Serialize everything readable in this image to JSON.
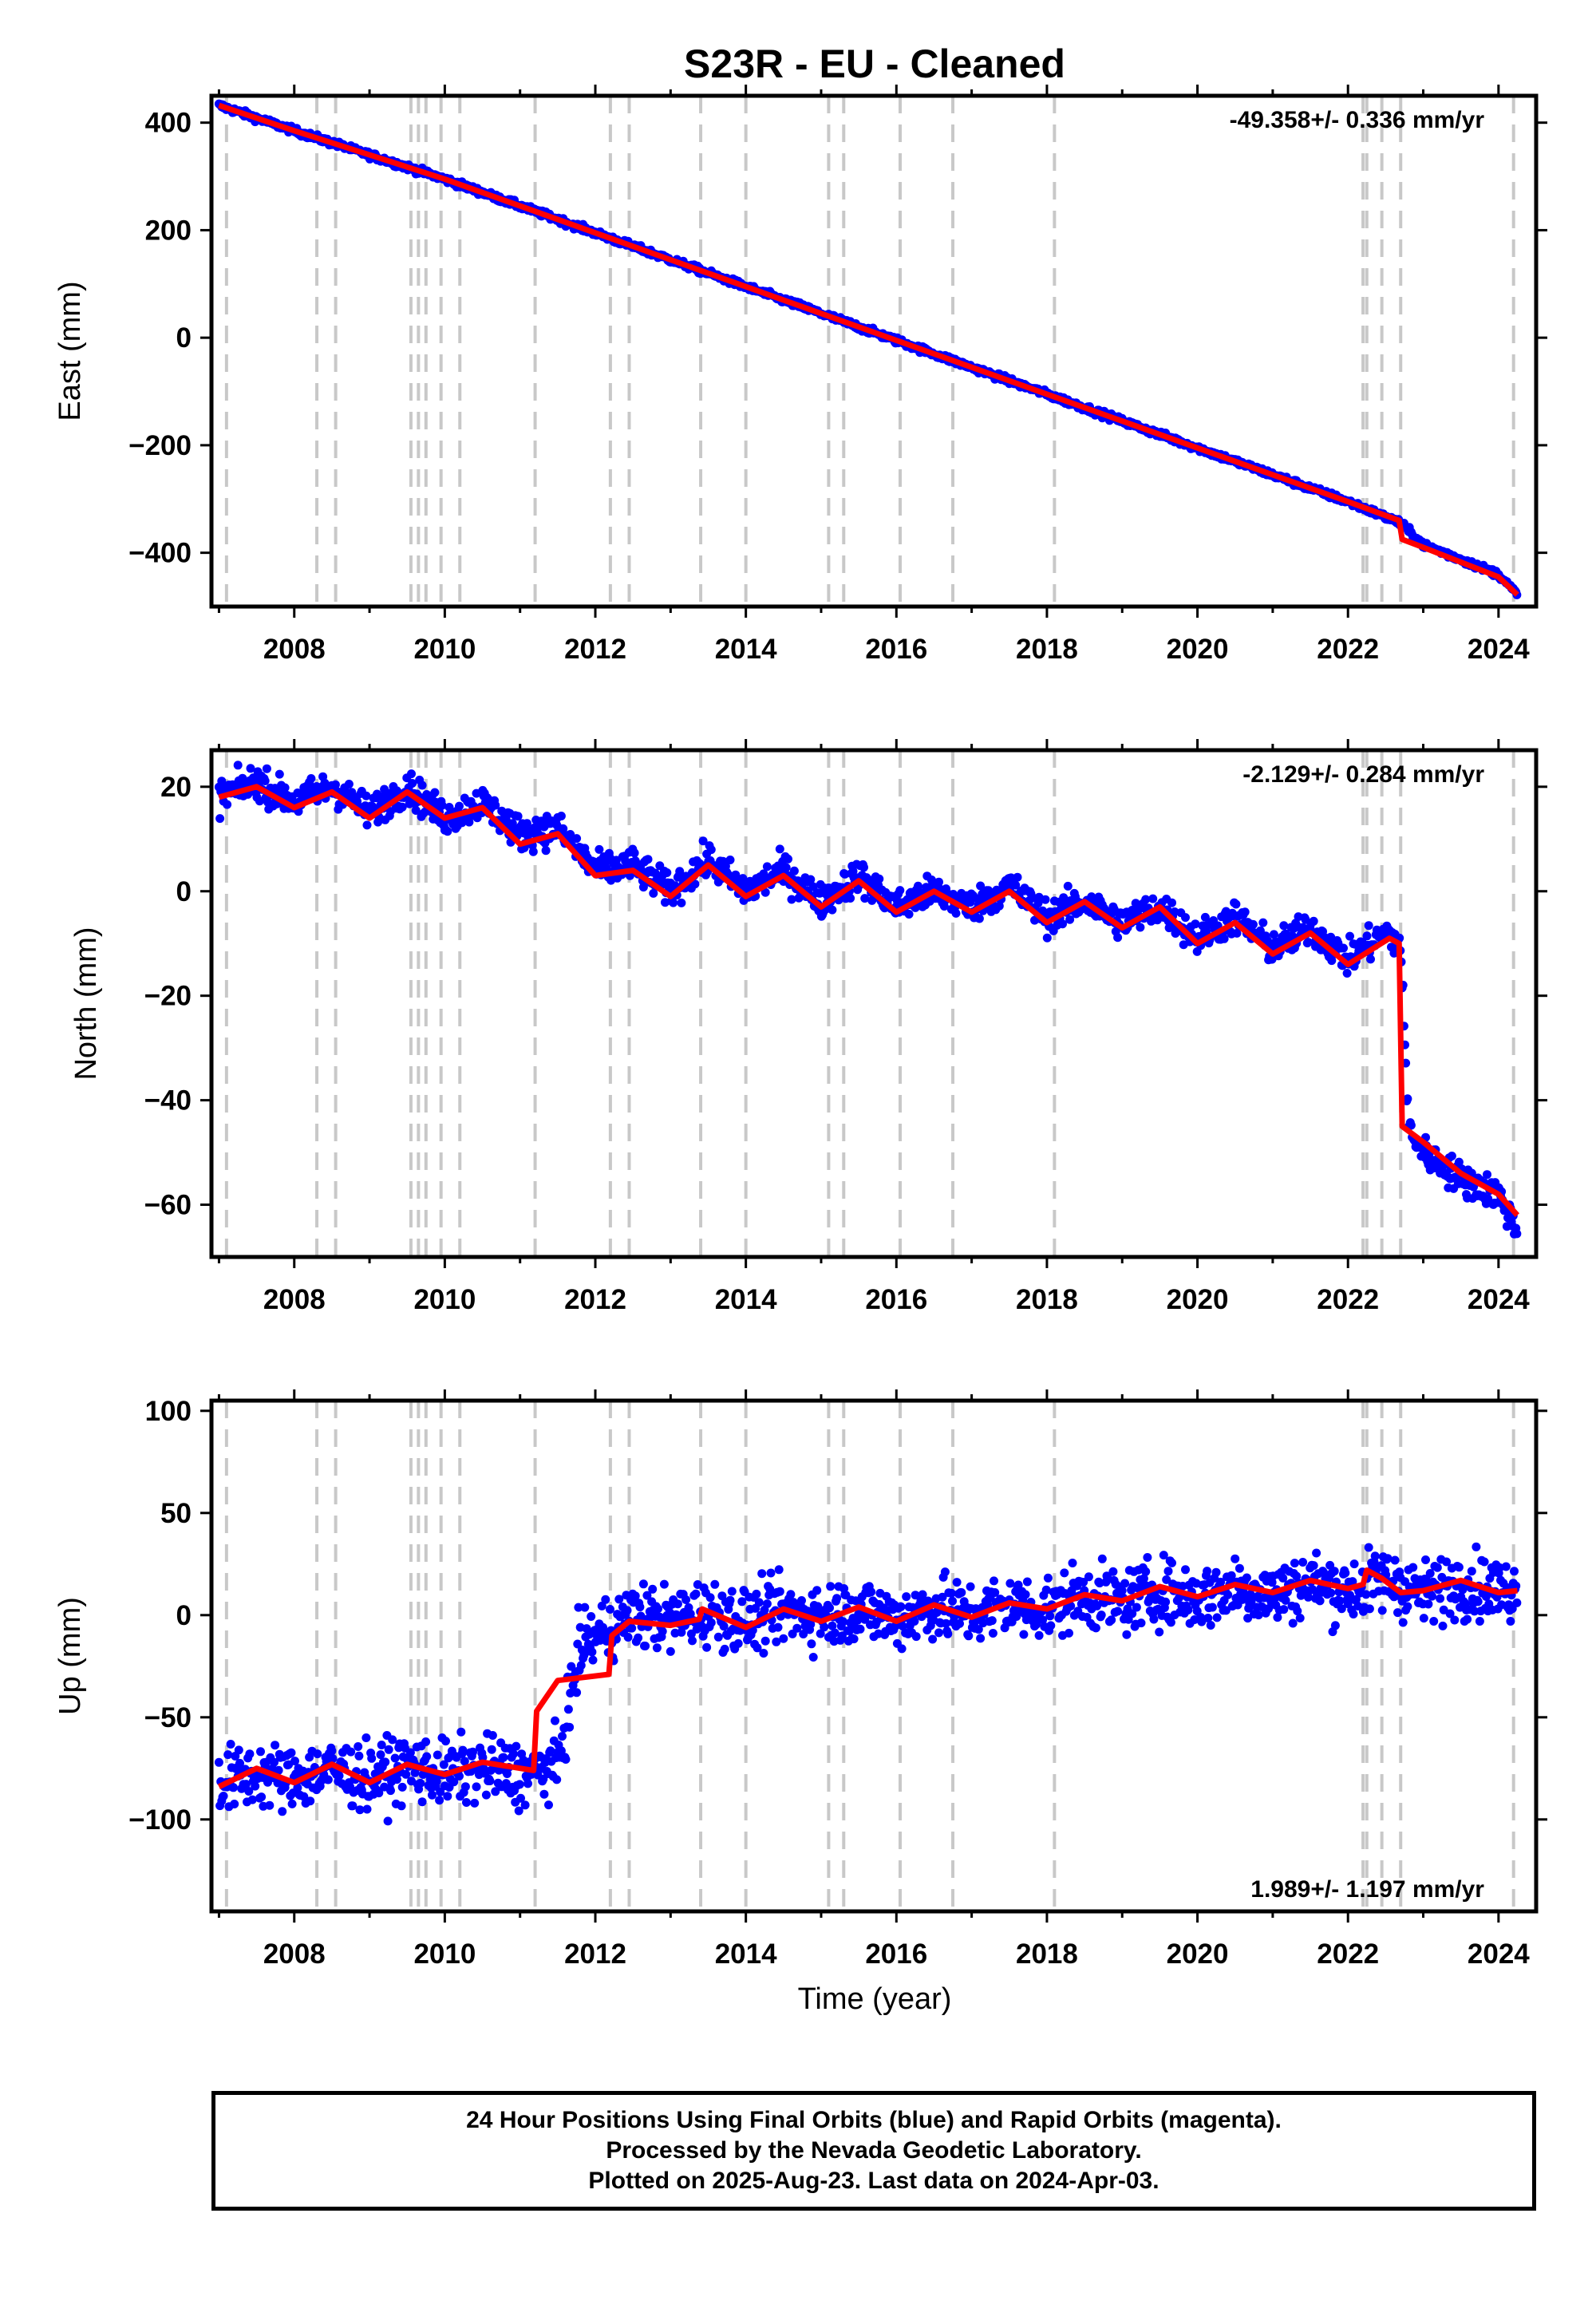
{
  "title": "S23R  - EU - Cleaned",
  "xlabel": "Time (year)",
  "x_tick_labels": [
    "2008",
    "2010",
    "2012",
    "2014",
    "2016",
    "2018",
    "2020",
    "2022",
    "2024"
  ],
  "footer": {
    "line1": "24 Hour Positions Using Final Orbits (blue) and Rapid Orbits (magenta).",
    "line2": "Processed by the Nevada Geodetic Laboratory.",
    "line3": "Plotted on 2025-Aug-23. Last data on 2024-Apr-03."
  },
  "colors": {
    "observations": "#0000ff",
    "model": "#ff0000",
    "step_lines": "#c8c8c8",
    "frame": "#000000"
  },
  "chart_data": [
    {
      "type": "scatter",
      "panel": "east",
      "ylabel": "East (mm)",
      "rate_label": "-49.358+/- 0.336 mm/yr",
      "rate_position": "top-right",
      "xlim": [
        2006.9,
        2024.5
      ],
      "ylim": [
        -500,
        450
      ],
      "y_ticks": [
        -400,
        -200,
        0,
        200,
        400
      ],
      "y_tick_labels": [
        "−400",
        "−200",
        "0",
        "200",
        "400"
      ],
      "x_ticks": [
        2008,
        2010,
        2012,
        2014,
        2016,
        2018,
        2020,
        2022,
        2024
      ],
      "step_epochs": [
        2007.1,
        2008.3,
        2008.55,
        2009.55,
        2009.65,
        2009.75,
        2009.95,
        2010.2,
        2011.2,
        2012.2,
        2012.45,
        2013.4,
        2014.0,
        2015.1,
        2015.3,
        2016.05,
        2016.75,
        2018.1,
        2022.2,
        2022.25,
        2022.45,
        2022.7,
        2024.2
      ],
      "series": [
        {
          "role": "observations",
          "x": [
            2007.0,
            2008.0,
            2009.0,
            2010.0,
            2011.0,
            2012.0,
            2013.0,
            2014.0,
            2015.0,
            2016.0,
            2017.0,
            2018.0,
            2019.0,
            2020.0,
            2021.0,
            2022.0,
            2022.7,
            2023.0,
            2024.0,
            2024.25
          ],
          "y": [
            432,
            385,
            340,
            295,
            245,
            195,
            145,
            95,
            45,
            -5,
            -55,
            -105,
            -155,
            -205,
            -255,
            -305,
            -345,
            -385,
            -440,
            -478
          ]
        },
        {
          "role": "model",
          "x": [
            2007.0,
            2008.0,
            2009.0,
            2010.0,
            2011.0,
            2012.0,
            2013.0,
            2014.0,
            2015.0,
            2016.0,
            2017.0,
            2018.0,
            2019.0,
            2020.0,
            2021.0,
            2022.0,
            2022.68,
            2022.72,
            2023.0,
            2024.0,
            2024.25
          ],
          "y": [
            432,
            385,
            340,
            295,
            245,
            195,
            145,
            95,
            45,
            -5,
            -55,
            -105,
            -155,
            -205,
            -255,
            -305,
            -340,
            -375,
            -390,
            -445,
            -478
          ]
        }
      ]
    },
    {
      "type": "scatter",
      "panel": "north",
      "ylabel": "North (mm)",
      "rate_label": "-2.129+/- 0.284 mm/yr",
      "rate_position": "top-right",
      "xlim": [
        2006.9,
        2024.5
      ],
      "ylim": [
        -70,
        27
      ],
      "y_ticks": [
        -60,
        -40,
        -20,
        0,
        20
      ],
      "y_tick_labels": [
        "−60",
        "−40",
        "−20",
        "0",
        "20"
      ],
      "x_ticks": [
        2008,
        2010,
        2012,
        2014,
        2016,
        2018,
        2020,
        2022,
        2024
      ],
      "step_epochs": [
        2007.1,
        2008.3,
        2008.55,
        2009.55,
        2009.65,
        2009.75,
        2009.95,
        2010.2,
        2011.2,
        2012.2,
        2012.45,
        2013.4,
        2014.0,
        2015.1,
        2015.3,
        2016.05,
        2016.75,
        2018.1,
        2022.2,
        2022.25,
        2022.45,
        2022.7,
        2024.2
      ],
      "series": [
        {
          "role": "observations",
          "x": [
            2007.0,
            2007.5,
            2008.0,
            2008.5,
            2009.0,
            2009.5,
            2010.0,
            2010.5,
            2011.0,
            2011.5,
            2012.0,
            2012.5,
            2013.0,
            2013.5,
            2014.0,
            2014.5,
            2015.0,
            2015.5,
            2016.0,
            2016.5,
            2017.0,
            2017.5,
            2018.0,
            2018.5,
            2019.0,
            2019.5,
            2020.0,
            2020.5,
            2021.0,
            2021.5,
            2022.0,
            2022.5,
            2022.7,
            2022.8,
            2023.0,
            2023.5,
            2024.0,
            2024.25
          ],
          "y": [
            18,
            21,
            17,
            20,
            15,
            20,
            14,
            17,
            11,
            12,
            4,
            5,
            0,
            6,
            0,
            4,
            -2,
            3,
            -3,
            0,
            -3,
            1,
            -5,
            -2,
            -6,
            -3,
            -9,
            -5,
            -11,
            -7,
            -13,
            -8,
            -10,
            -45,
            -50,
            -55,
            -58,
            -65
          ]
        },
        {
          "role": "model",
          "x": [
            2007.0,
            2007.5,
            2008.0,
            2008.5,
            2009.0,
            2009.5,
            2010.0,
            2010.5,
            2011.0,
            2011.5,
            2012.0,
            2012.5,
            2013.0,
            2013.5,
            2014.0,
            2014.5,
            2015.0,
            2015.5,
            2016.0,
            2016.5,
            2017.0,
            2017.5,
            2018.0,
            2018.5,
            2019.0,
            2019.5,
            2020.0,
            2020.5,
            2021.0,
            2021.5,
            2022.0,
            2022.55,
            2022.68,
            2022.72,
            2023.0,
            2023.5,
            2024.0,
            2024.25
          ],
          "y": [
            18,
            20,
            16,
            19,
            14,
            19,
            14,
            16,
            9,
            11,
            3,
            4,
            -1,
            5,
            -1,
            3,
            -3,
            2,
            -4,
            0,
            -4,
            0,
            -6,
            -2,
            -7,
            -3,
            -10,
            -6,
            -12,
            -8,
            -14,
            -9,
            -10,
            -45,
            -48,
            -54,
            -58,
            -62
          ]
        }
      ]
    },
    {
      "type": "scatter",
      "panel": "up",
      "ylabel": "Up (mm)",
      "rate_label": "1.989+/- 1.197 mm/yr",
      "rate_position": "bottom-right",
      "xlim": [
        2006.9,
        2024.5
      ],
      "ylim": [
        -145,
        105
      ],
      "y_ticks": [
        -100,
        -50,
        0,
        50,
        100
      ],
      "y_tick_labels": [
        "−100",
        "−50",
        "0",
        "50",
        "100"
      ],
      "x_ticks": [
        2008,
        2010,
        2012,
        2014,
        2016,
        2018,
        2020,
        2022,
        2024
      ],
      "step_epochs": [
        2007.1,
        2008.3,
        2008.55,
        2009.55,
        2009.65,
        2009.75,
        2009.95,
        2010.2,
        2011.2,
        2012.2,
        2012.45,
        2013.4,
        2014.0,
        2015.1,
        2015.3,
        2016.05,
        2016.75,
        2018.1,
        2022.2,
        2022.25,
        2022.45,
        2022.7,
        2024.2
      ],
      "series": [
        {
          "role": "observations",
          "x": [
            2007.0,
            2007.5,
            2008.0,
            2008.5,
            2009.0,
            2009.5,
            2010.0,
            2010.5,
            2011.0,
            2011.5,
            2011.8,
            2012.0,
            2012.5,
            2013.0,
            2013.5,
            2014.0,
            2014.5,
            2015.0,
            2015.5,
            2016.0,
            2016.5,
            2017.0,
            2017.5,
            2018.0,
            2018.5,
            2019.0,
            2019.5,
            2020.0,
            2020.5,
            2021.0,
            2021.5,
            2022.0,
            2022.5,
            2023.0,
            2023.5,
            2024.0,
            2024.25
          ],
          "y": [
            -82,
            -78,
            -80,
            -76,
            -80,
            -74,
            -78,
            -75,
            -78,
            -74,
            -15,
            -10,
            0,
            -2,
            2,
            -3,
            2,
            0,
            3,
            -2,
            4,
            0,
            5,
            3,
            10,
            6,
            12,
            8,
            14,
            10,
            16,
            12,
            18,
            10,
            16,
            12,
            12
          ]
        },
        {
          "role": "model",
          "x": [
            2007.0,
            2007.5,
            2008.0,
            2008.5,
            2009.0,
            2009.5,
            2010.0,
            2010.5,
            2011.18,
            2011.22,
            2011.5,
            2012.18,
            2012.22,
            2012.45,
            2013.0,
            2013.38,
            2013.42,
            2014.0,
            2014.5,
            2015.0,
            2015.5,
            2016.0,
            2016.5,
            2017.0,
            2017.5,
            2018.0,
            2018.5,
            2019.0,
            2019.5,
            2020.0,
            2020.5,
            2021.0,
            2021.5,
            2022.0,
            2022.2,
            2022.25,
            2022.45,
            2022.7,
            2023.0,
            2023.5,
            2024.0,
            2024.25
          ],
          "y": [
            -84,
            -75,
            -82,
            -73,
            -82,
            -73,
            -78,
            -72,
            -76,
            -47,
            -32,
            -29,
            -10,
            -3,
            -5,
            -2,
            3,
            -6,
            3,
            -3,
            4,
            -3,
            5,
            -1,
            6,
            3,
            10,
            7,
            14,
            9,
            15,
            11,
            17,
            13,
            15,
            22,
            18,
            11,
            12,
            17,
            11,
            12
          ]
        }
      ]
    }
  ]
}
